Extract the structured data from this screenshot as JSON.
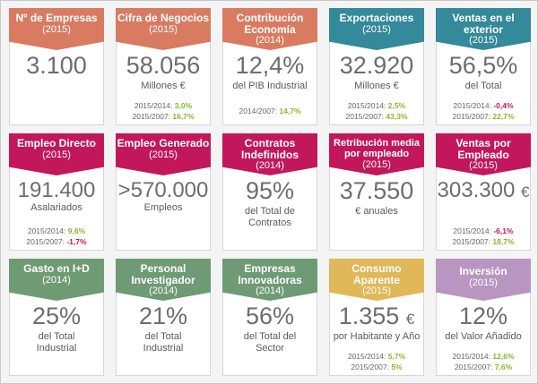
{
  "cards": [
    {
      "title": "Nº de Empresas",
      "year": "(2015)",
      "value": "3.100",
      "unit": "",
      "sub": "",
      "stats": []
    },
    {
      "title": "Cifra de Negocios",
      "year": "(2015)",
      "value": "58.056",
      "unit": "",
      "sub": "Millones €",
      "stats": [
        {
          "label": "2015/2014:",
          "value": "3,0%"
        },
        {
          "label": "2015/2007:",
          "value": "16,7%"
        }
      ]
    },
    {
      "title": "Contribución Economía",
      "year": "(2014)",
      "value": "12,4%",
      "unit": "",
      "sub": "del PIB Industrial",
      "stats": [
        {
          "label": "2014/2007:",
          "value": "14,7%"
        }
      ]
    },
    {
      "title": "Exportaciones",
      "year": "(2015)",
      "value": "32.920",
      "unit": "",
      "sub": "Millones €",
      "stats": [
        {
          "label": "2015/2014:",
          "value": "2,5%"
        },
        {
          "label": "2015/2007:",
          "value": "43,3%"
        }
      ]
    },
    {
      "title": "Ventas en el exterior",
      "year": "(2015)",
      "value": "56,5%",
      "unit": "",
      "sub": "del Total",
      "stats": [
        {
          "label": "2015/2014:",
          "value": "-0,4%"
        },
        {
          "label": "2015/2007:",
          "value": "22,7%"
        }
      ]
    },
    {
      "title": "Empleo Directo",
      "year": "(2015)",
      "value": "191.400",
      "unit": "",
      "sub": "Asalariados",
      "stats": [
        {
          "label": "2015/2014:",
          "value": "9,6%"
        },
        {
          "label": "2015/2007:",
          "value": "-1,7%"
        }
      ]
    },
    {
      "title": "Empleo Generado",
      "year": "(2015)",
      "value": ">570.000",
      "unit": "",
      "sub": "Empleos",
      "stats": []
    },
    {
      "title": "Contratos Indefinidos",
      "year": "(2014)",
      "value": "95%",
      "unit": "",
      "sub": "del Total de Contratos",
      "stats": []
    },
    {
      "title": "Retribución media por empleado",
      "year": "(2015)",
      "value": "37.550",
      "unit": "",
      "sub": "€ anuales",
      "stats": []
    },
    {
      "title": "Ventas por Empleado",
      "year": "(2015)",
      "value": "303.300",
      "unit": "€",
      "sub": "",
      "stats": [
        {
          "label": "2015/2014:",
          "value": "-6,1%"
        },
        {
          "label": "2015/2007:",
          "value": "18,7%"
        }
      ]
    },
    {
      "title": "Gasto en I+D",
      "year": "(2014)",
      "value": "25%",
      "unit": "",
      "sub": "del Total Industrial",
      "stats": []
    },
    {
      "title": "Personal Investigador",
      "year": "(2014)",
      "value": "21%",
      "unit": "",
      "sub": "del Total Industrial",
      "stats": []
    },
    {
      "title": "Empresas Innovadoras",
      "year": "(2014)",
      "value": "56%",
      "unit": "",
      "sub": "del Total del Sector",
      "stats": []
    },
    {
      "title": "Consumo Aparente",
      "year": "(2015)",
      "value": "1.355",
      "unit": "€",
      "sub": "por Habitante y Año",
      "stats": [
        {
          "label": "2015/2014:",
          "value": "5,7%"
        },
        {
          "label": "2015/2007:",
          "value": "5%"
        }
      ]
    },
    {
      "title": "Inversión",
      "year": "(2015)",
      "value": "12%",
      "unit": "",
      "sub": "del Valor Añadido",
      "stats": [
        {
          "label": "2015/2014:",
          "value": "12,6%"
        },
        {
          "label": "2015/2007:",
          "value": "7,6%"
        }
      ]
    }
  ]
}
